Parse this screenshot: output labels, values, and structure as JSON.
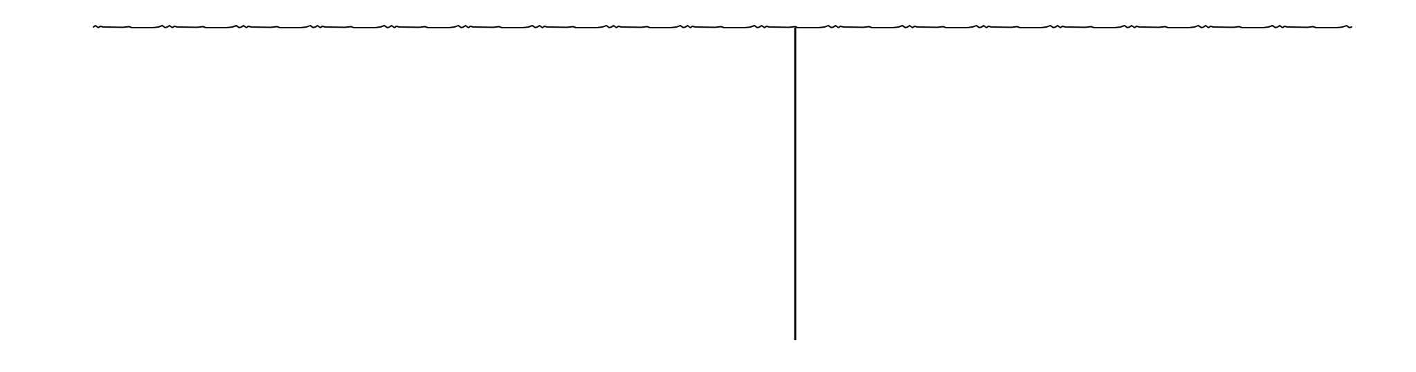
{
  "diagram": {
    "line_color": "#000000",
    "background_color": "#ffffff",
    "wave_peak_count": 17
  }
}
